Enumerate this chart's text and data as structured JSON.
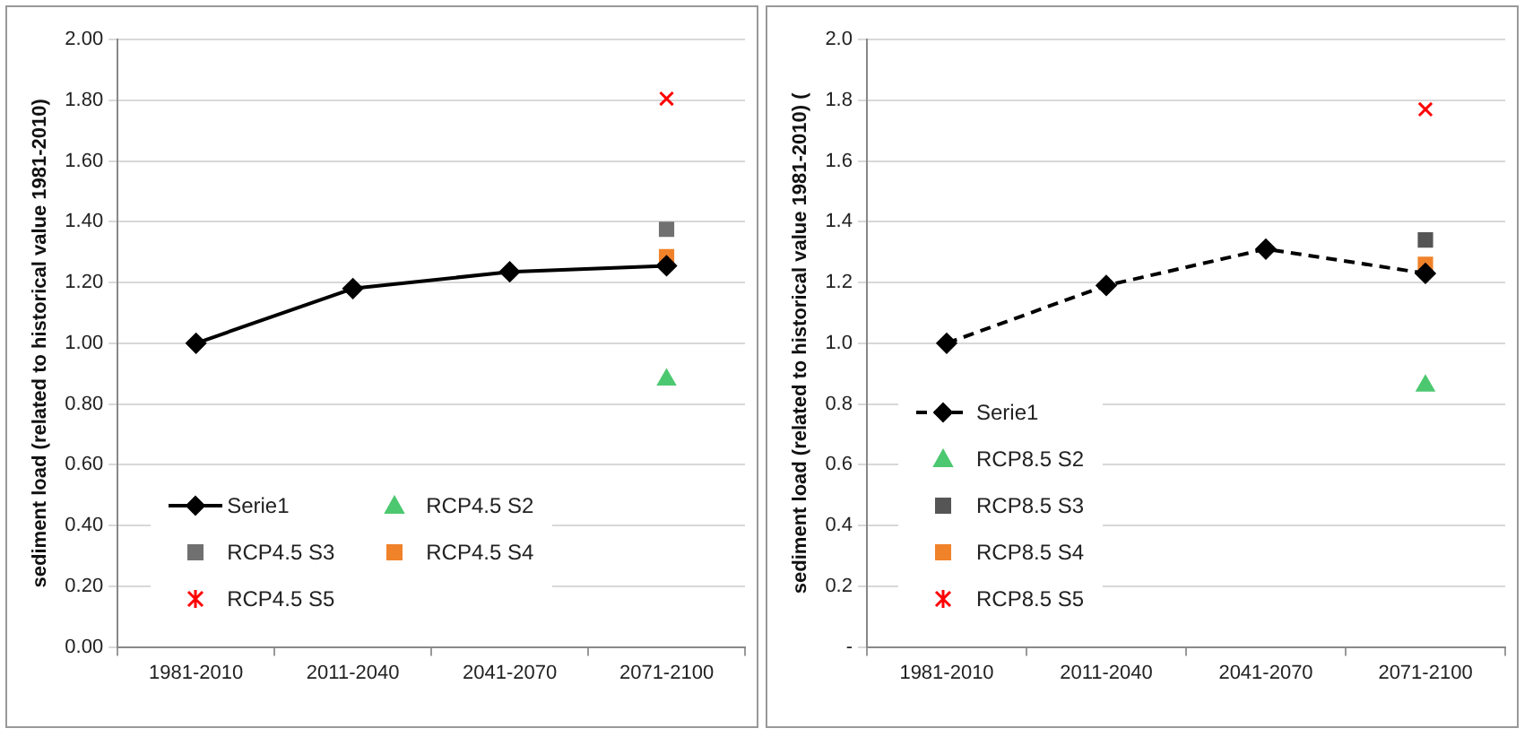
{
  "chart_data": [
    {
      "type": "line",
      "ylabel": "sediment load (related to historical value 1981-2010)",
      "categories": [
        "1981-2010",
        "2011-2040",
        "2041-2070",
        "2071-2100"
      ],
      "series": [
        {
          "name": "Serie1",
          "color": "#000000",
          "marker": "diamond",
          "line_style": "solid",
          "values": [
            1.0,
            1.18,
            1.235,
            1.255
          ]
        },
        {
          "name": "RCP4.5 S2",
          "type": "scatter",
          "color": "#4cc870",
          "marker": "triangle",
          "values": [
            null,
            null,
            null,
            0.88
          ]
        },
        {
          "name": "RCP4.5 S3",
          "type": "scatter",
          "color": "#707070",
          "marker": "square",
          "values": [
            null,
            null,
            null,
            1.375
          ]
        },
        {
          "name": "RCP4.5 S4",
          "type": "scatter",
          "color": "#f0822a",
          "marker": "square",
          "values": [
            null,
            null,
            null,
            1.285
          ]
        },
        {
          "name": "RCP4.5 S5",
          "type": "scatter",
          "color": "#ff0000",
          "marker": "cross",
          "values": [
            null,
            null,
            null,
            1.805
          ]
        }
      ],
      "ylim": [
        0,
        2
      ],
      "yticks": [
        {
          "value": 0,
          "label": "0.00"
        },
        {
          "value": 0.2,
          "label": "0.20"
        },
        {
          "value": 0.4,
          "label": "0.40"
        },
        {
          "value": 0.6,
          "label": "0.60"
        },
        {
          "value": 0.8,
          "label": "0.80"
        },
        {
          "value": 1,
          "label": "1.00"
        },
        {
          "value": 1.2,
          "label": "1.20"
        },
        {
          "value": 1.4,
          "label": "1.40"
        },
        {
          "value": 1.6,
          "label": "1.60"
        },
        {
          "value": 1.8,
          "label": "1.80"
        },
        {
          "value": 2,
          "label": "2.00"
        }
      ],
      "grid": "y",
      "legend": "bottom left"
    },
    {
      "type": "line",
      "ylabel": "sediment load (related to historical value 1981-2010) (",
      "categories": [
        "1981-2010",
        "2011-2040",
        "2041-2070",
        "2071-2100"
      ],
      "series": [
        {
          "name": "Serie1",
          "color": "#000000",
          "marker": "diamond",
          "line_style": "dashed",
          "values": [
            1.0,
            1.19,
            1.31,
            1.23
          ]
        },
        {
          "name": "RCP8.5 S2",
          "type": "scatter",
          "color": "#4cc870",
          "marker": "triangle",
          "values": [
            null,
            null,
            null,
            0.86
          ]
        },
        {
          "name": "RCP8.5 S3",
          "type": "scatter",
          "color": "#555555",
          "marker": "square",
          "values": [
            null,
            null,
            null,
            1.34
          ]
        },
        {
          "name": "RCP8.5 S4",
          "type": "scatter",
          "color": "#f0822a",
          "marker": "square",
          "values": [
            null,
            null,
            null,
            1.26
          ]
        },
        {
          "name": "RCP8.5 S5",
          "type": "scatter",
          "color": "#ff0000",
          "marker": "cross",
          "values": [
            null,
            null,
            null,
            1.77
          ]
        }
      ],
      "ylim": [
        0,
        2
      ],
      "yticks": [
        {
          "value": 0,
          "label": "-"
        },
        0.2,
        0.4,
        0.6,
        0.8,
        {
          "value": 1,
          "label": "1.0"
        },
        1.2,
        1.4,
        1.6,
        1.8,
        {
          "value": 2,
          "label": "2.0"
        }
      ],
      "grid": "y",
      "legend": "bottom left"
    }
  ]
}
